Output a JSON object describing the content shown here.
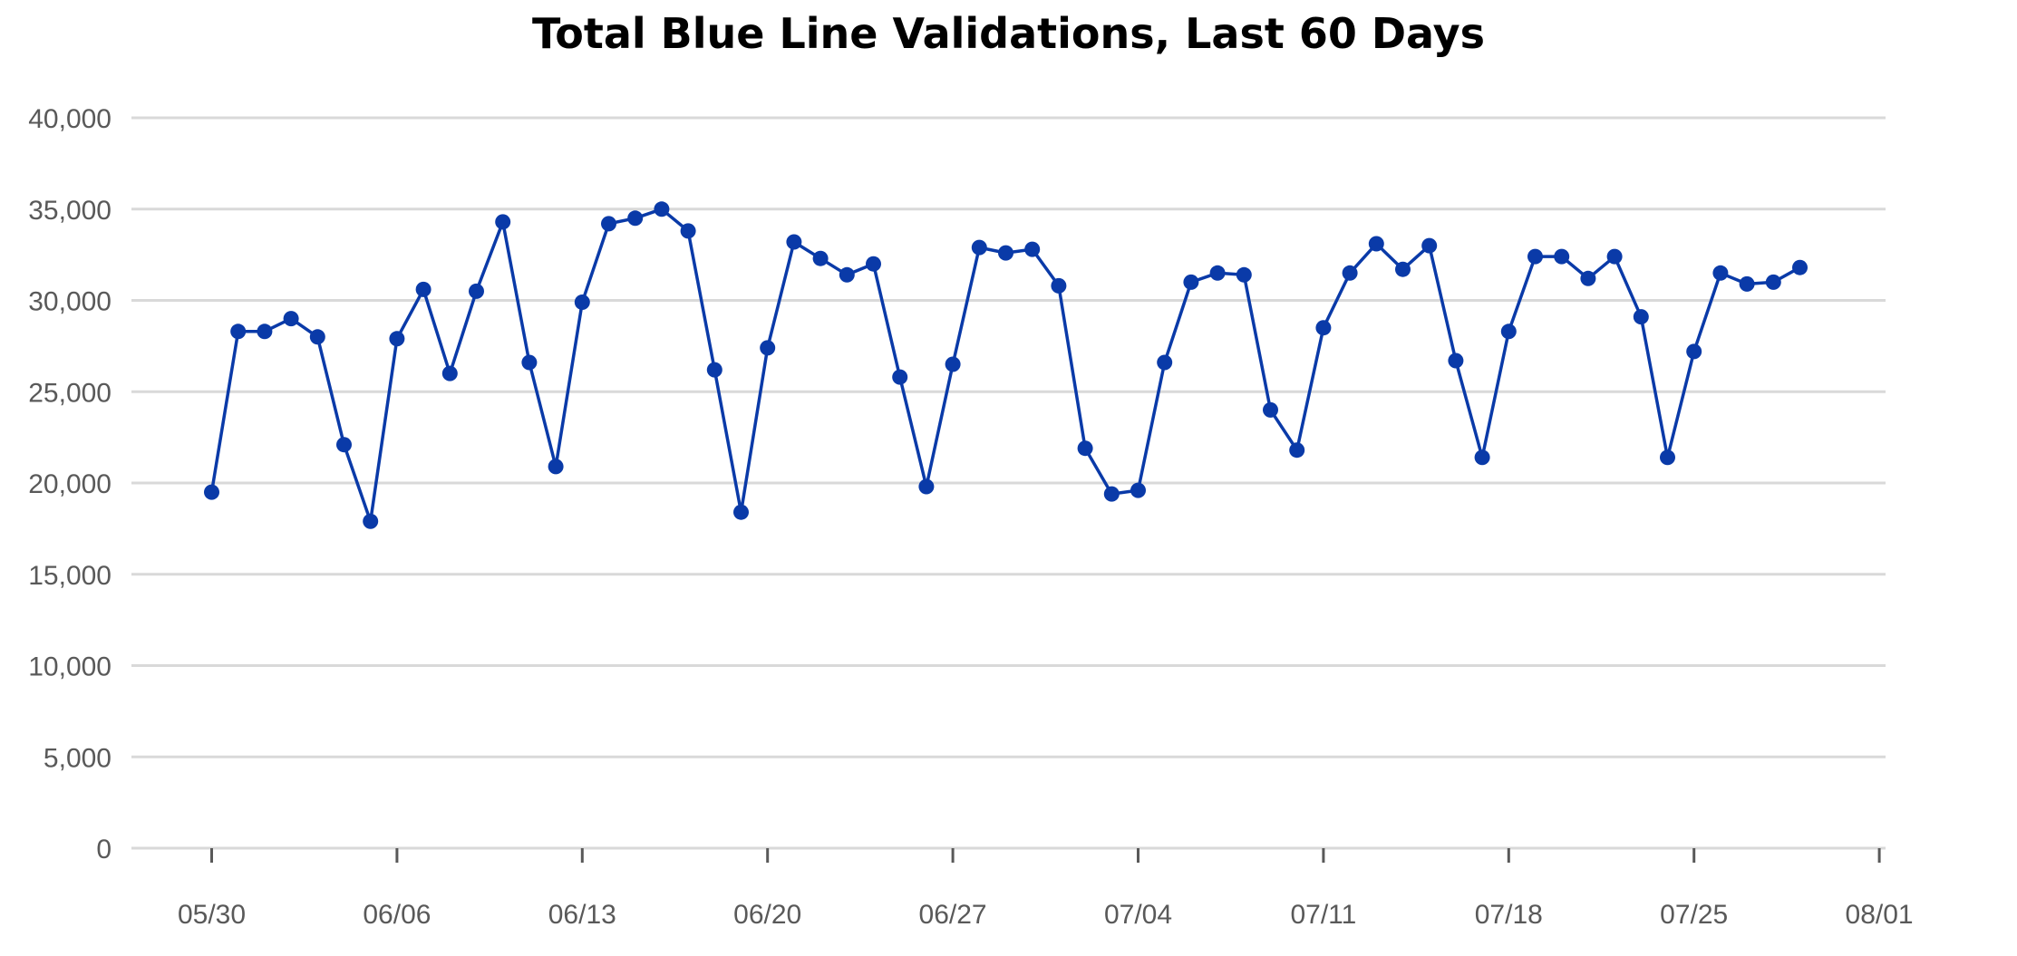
{
  "chart_data": {
    "type": "line",
    "title": "Total Blue Line Validations, Last 60 Days",
    "xlabel": "",
    "ylabel": "",
    "ylim": [
      0,
      40000
    ],
    "y_ticks": [
      "0",
      "5,000",
      "10,000",
      "15,000",
      "20,000",
      "25,000",
      "30,000",
      "35,000",
      "40,000"
    ],
    "x_ticks": [
      "05/30",
      "06/06",
      "06/13",
      "06/20",
      "06/27",
      "07/04",
      "07/11",
      "07/18",
      "07/25",
      "08/01"
    ],
    "grid": "horizontal",
    "legend": "none",
    "series": [
      {
        "color": "#0a3aa8",
        "x": [
          "05/30",
          "05/31",
          "06/01",
          "06/02",
          "06/03",
          "06/04",
          "06/05",
          "06/06",
          "06/07",
          "06/08",
          "06/09",
          "06/10",
          "06/11",
          "06/12",
          "06/13",
          "06/14",
          "06/15",
          "06/16",
          "06/17",
          "06/18",
          "06/19",
          "06/20",
          "06/21",
          "06/22",
          "06/23",
          "06/24",
          "06/25",
          "06/26",
          "06/27",
          "06/28",
          "06/29",
          "06/30",
          "07/01",
          "07/02",
          "07/03",
          "07/04",
          "07/05",
          "07/06",
          "07/07",
          "07/08",
          "07/09",
          "07/10",
          "07/11",
          "07/12",
          "07/13",
          "07/14",
          "07/15",
          "07/16",
          "07/17",
          "07/18",
          "07/19",
          "07/20",
          "07/21",
          "07/22",
          "07/23",
          "07/24",
          "07/25",
          "07/26",
          "07/27",
          "07/28",
          "07/29"
        ],
        "values": [
          19500,
          28300,
          28300,
          29000,
          28000,
          22100,
          17900,
          27900,
          30600,
          26000,
          30500,
          34300,
          26600,
          20900,
          29900,
          34200,
          34500,
          35000,
          33800,
          26200,
          18400,
          27400,
          33200,
          32300,
          31400,
          32000,
          25800,
          19800,
          26500,
          32900,
          32600,
          32800,
          30800,
          21900,
          19400,
          19600,
          26600,
          31000,
          31500,
          31400,
          24000,
          21800,
          28500,
          31500,
          33100,
          31700,
          33000,
          26700,
          21400,
          28300,
          32400,
          32400,
          31200,
          32400,
          29100,
          21400,
          27200,
          31500,
          30900,
          31000,
          31800
        ]
      }
    ]
  }
}
